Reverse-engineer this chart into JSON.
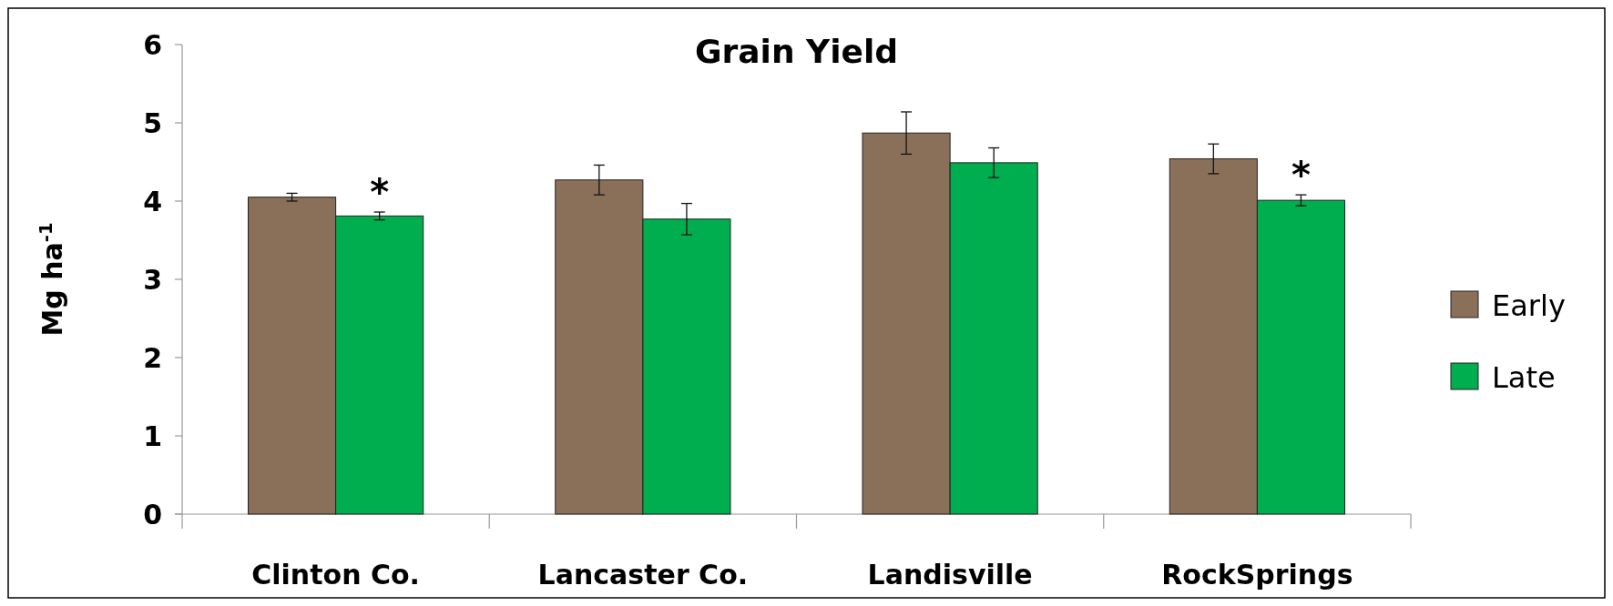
{
  "chart_data": {
    "type": "bar",
    "title": "Grain Yield",
    "ylabel": "Mg ha$^{-1}$",
    "categories": [
      "Clinton Co.",
      "Lancaster Co.",
      "Landisville",
      "RockSprings"
    ],
    "series": [
      {
        "name": "Early",
        "color": "#8b7059",
        "values": [
          4.05,
          4.27,
          4.87,
          4.54
        ],
        "errors": [
          0.05,
          0.19,
          0.27,
          0.19
        ]
      },
      {
        "name": "Late",
        "color": "#00ae4f",
        "values": [
          3.81,
          3.77,
          4.49,
          4.01
        ],
        "errors": [
          0.05,
          0.2,
          0.19,
          0.07
        ]
      }
    ],
    "ylim": [
      0,
      6
    ],
    "yticks": [
      0,
      1,
      2,
      3,
      4,
      5,
      6
    ],
    "grid": false,
    "legend": "right",
    "annotations": [
      {
        "text": "*",
        "x": "Clinton Co.",
        "y": 3.86
      },
      {
        "text": "*",
        "x": "RockSprings",
        "y": 4.08
      }
    ]
  }
}
